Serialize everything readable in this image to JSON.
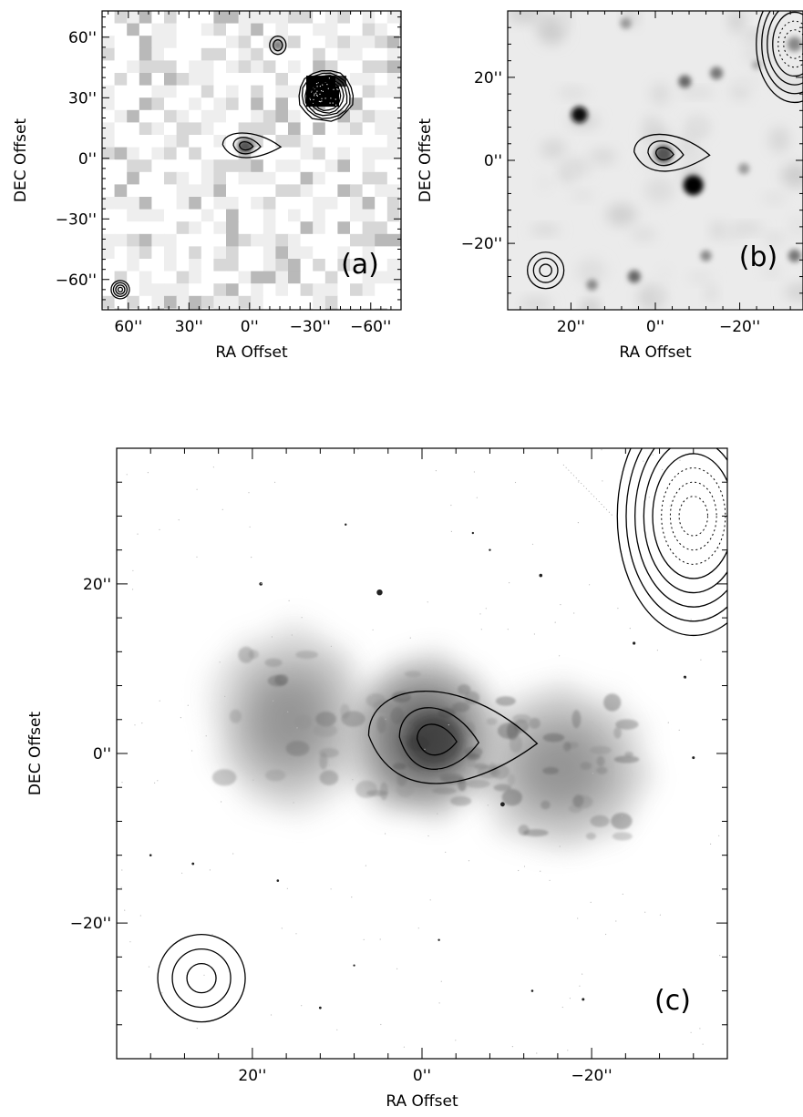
{
  "chart_data": [
    {
      "panel": "(a)",
      "type": "image",
      "xlabel": "RA Offset",
      "ylabel": "DEC Offset",
      "x_ticks": [
        "60''",
        "30''",
        "0''",
        "−30''",
        "−60''"
      ],
      "y_ticks": [
        "60''",
        "30''",
        "0''",
        "−30''",
        "−60''"
      ],
      "x_tick_values": [
        60,
        30,
        0,
        -30,
        -60
      ],
      "y_tick_values": [
        60,
        30,
        0,
        -30,
        -60
      ],
      "xlim": [
        73,
        -75
      ],
      "ylim": [
        -75,
        73
      ],
      "contours": [
        {
          "source": "central",
          "ra": 2,
          "dec": 6,
          "levels": 3
        },
        {
          "source": "north",
          "ra": -14,
          "dec": 56,
          "levels": 2
        },
        {
          "source": "west",
          "ra": -38,
          "dec": 31,
          "levels": 5
        }
      ],
      "beam": {
        "ra": 64,
        "dec": -65,
        "rings": 4
      }
    },
    {
      "panel": "(b)",
      "type": "image",
      "xlabel": "RA Offset",
      "ylabel": "DEC Offset",
      "x_ticks": [
        "20''",
        "0''",
        "−20''"
      ],
      "y_ticks": [
        "20''",
        "0''",
        "−20''"
      ],
      "x_tick_values": [
        20,
        0,
        -20
      ],
      "y_tick_values": [
        20,
        0,
        -20
      ],
      "xlim": [
        35,
        -35
      ],
      "ylim": [
        -36,
        36
      ],
      "contours": [
        {
          "source": "central",
          "ra": -2,
          "dec": 1.5,
          "levels": 3
        },
        {
          "source": "northwest",
          "ra": -33,
          "dec": 28,
          "levels": 6
        }
      ],
      "beam": {
        "ra": 26,
        "dec": -26.5,
        "rings": 3
      }
    },
    {
      "panel": "(c)",
      "type": "image",
      "xlabel": "RA Offset",
      "ylabel": "DEC Offset",
      "x_ticks": [
        "20''",
        "0''",
        "−20''"
      ],
      "y_ticks": [
        "20''",
        "0''",
        "−20''"
      ],
      "x_tick_values": [
        20,
        0,
        -20
      ],
      "y_tick_values": [
        20,
        0,
        -20
      ],
      "xlim": [
        36,
        -36
      ],
      "ylim": [
        -36,
        36
      ],
      "contours": [
        {
          "source": "central",
          "ra": -1.5,
          "dec": 1.5,
          "levels": 3
        },
        {
          "source": "northwest",
          "ra": -32,
          "dec": 28,
          "levels": 8
        }
      ],
      "beam": {
        "ra": 26,
        "dec": -26.5,
        "rings": 3
      }
    }
  ]
}
